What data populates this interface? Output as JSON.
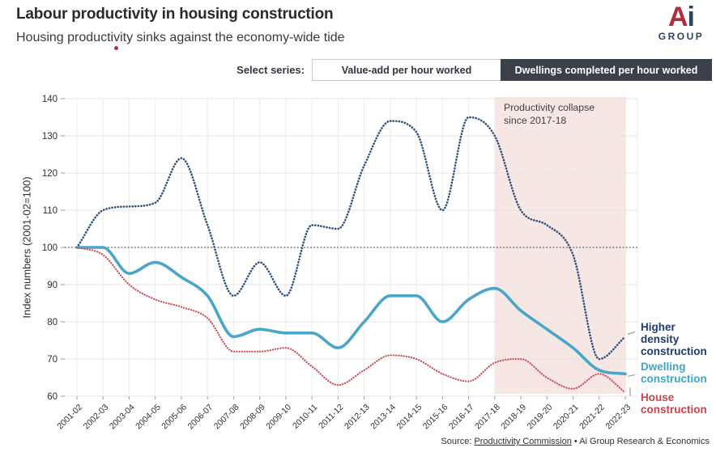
{
  "header": {
    "title": "Labour productivity in housing construction",
    "subtitle": "Housing productivity sinks against the economy-wide tide"
  },
  "logo": {
    "letter_a": "A",
    "letter_i": "i",
    "group": "GROUP"
  },
  "controls": {
    "label": "Select series:",
    "options": [
      {
        "label": "Value-add per hour worked",
        "selected": false
      },
      {
        "label": "Dwellings completed per hour worked",
        "selected": true
      }
    ]
  },
  "chart_data": {
    "type": "line",
    "title": "",
    "xlabel": "",
    "ylabel": "Index numbers (2001-02=100)",
    "ylim": [
      60,
      140
    ],
    "yticks": [
      60,
      70,
      80,
      90,
      100,
      110,
      120,
      130,
      140
    ],
    "grid": true,
    "legend_position": "right",
    "reference_line": 100,
    "categories": [
      "2001-02",
      "2002-03",
      "2003-04",
      "2004-05",
      "2005-06",
      "2006-07",
      "2007-08",
      "2008-09",
      "2009-10",
      "2010-11",
      "2011-12",
      "2012-13",
      "2013-14",
      "2014-15",
      "2015-16",
      "2016-17",
      "2017-18",
      "2018-19",
      "2019-20",
      "2020-21",
      "2021-22",
      "2022-23"
    ],
    "series": [
      {
        "name": "Higher density construction",
        "style": "dotted",
        "color": "#31517e",
        "values": [
          100,
          110,
          111,
          112,
          124,
          106,
          87,
          96,
          87,
          106,
          105,
          122,
          134,
          131,
          110,
          135,
          130,
          110,
          106,
          98,
          70,
          76
        ]
      },
      {
        "name": "Dwelling construction",
        "style": "solid",
        "color": "#4aa6c8",
        "values": [
          100,
          100,
          93,
          96,
          92,
          87,
          76,
          78,
          77,
          77,
          73,
          80,
          87,
          87,
          80,
          86,
          89,
          83,
          78,
          73,
          67,
          66
        ]
      },
      {
        "name": "House construction",
        "style": "dotted",
        "color": "#cb4e54",
        "values": [
          100,
          98,
          90,
          86,
          84,
          81,
          72,
          72,
          73,
          68,
          63,
          67,
          71,
          70,
          66,
          64,
          69,
          70,
          65,
          62,
          66,
          61
        ]
      }
    ],
    "shaded_region": {
      "from": "2017-18",
      "to": "2022-23",
      "color": "#f6e7e5"
    },
    "annotation": {
      "lines": [
        "Productivity collapse",
        "since 2017-18"
      ]
    }
  },
  "legend": {
    "items": [
      {
        "key": "higher-density",
        "lines": [
          "Higher",
          "density",
          "construction"
        ],
        "color": "#1e3c6d"
      },
      {
        "key": "dwelling",
        "lines": [
          "Dwelling",
          "construction"
        ],
        "color": "#41a5c8"
      },
      {
        "key": "house",
        "lines": [
          "House",
          "construction"
        ],
        "color": "#c4454e"
      }
    ]
  },
  "footer": {
    "prefix": "Source: ",
    "link": "Productivity Commission",
    "separator": " • ",
    "rest": "Ai Group Research & Economics"
  }
}
